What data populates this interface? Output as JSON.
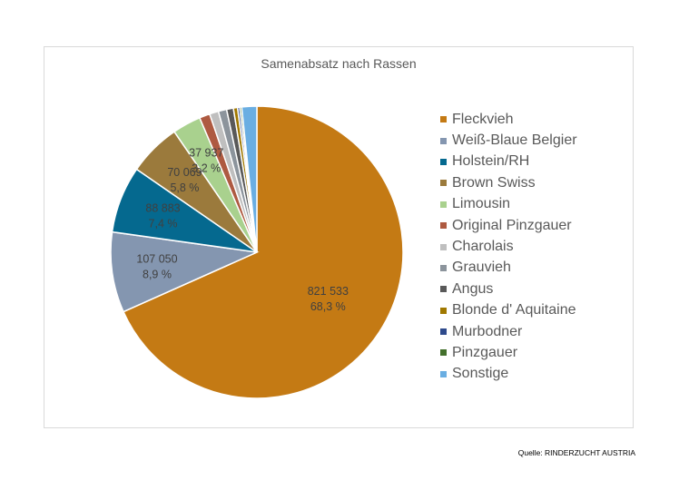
{
  "chart_data": {
    "type": "pie",
    "title": "Samenabsatz nach Rassen",
    "legend_position": "right",
    "start_angle": "12 o'clock, clockwise",
    "slices": [
      {
        "name": "Fleckvieh",
        "value": 821533,
        "value_label": "821 533",
        "percent_label": "68,3 %",
        "color": "#c47a14"
      },
      {
        "name": "Weiß-Blaue Belgier",
        "value": 107050,
        "value_label": "107 050",
        "percent_label": "8,9 %",
        "color": "#8496b0"
      },
      {
        "name": "Holstein/RH",
        "value": 88883,
        "value_label": "88 883",
        "percent_label": "7,4 %",
        "color": "#05698f"
      },
      {
        "name": "Brown Swiss",
        "value": 70069,
        "value_label": "70 069",
        "percent_label": "5,8 %",
        "color": "#9b7a3c"
      },
      {
        "name": "Limousin",
        "value": 37937,
        "value_label": "37 937",
        "percent_label": "3,2 %",
        "color": "#a9d18e"
      },
      {
        "name": "Original Pinzgauer",
        "value": 14000,
        "value_label": "",
        "percent_label": "",
        "color": "#ae5a41"
      },
      {
        "name": "Charolais",
        "value": 12000,
        "value_label": "",
        "percent_label": "",
        "color": "#bfbfbf"
      },
      {
        "name": "Grauvieh",
        "value": 11000,
        "value_label": "",
        "percent_label": "",
        "color": "#8c949c"
      },
      {
        "name": "Angus",
        "value": 9000,
        "value_label": "",
        "percent_label": "",
        "color": "#595959"
      },
      {
        "name": "Blonde d' Aquitaine",
        "value": 5500,
        "value_label": "",
        "percent_label": "",
        "color": "#a07800"
      },
      {
        "name": "Murbodner",
        "value": 3000,
        "value_label": "",
        "percent_label": "",
        "color": "#2e4a8c"
      },
      {
        "name": "Pinzgauer",
        "value": 2500,
        "value_label": "",
        "percent_label": "",
        "color": "#43702c"
      },
      {
        "name": "Sonstige",
        "value": 20000,
        "value_label": "",
        "percent_label": "",
        "color": "#6aaee2"
      }
    ]
  },
  "source": "Quelle: RINDERZUCHT AUSTRIA"
}
